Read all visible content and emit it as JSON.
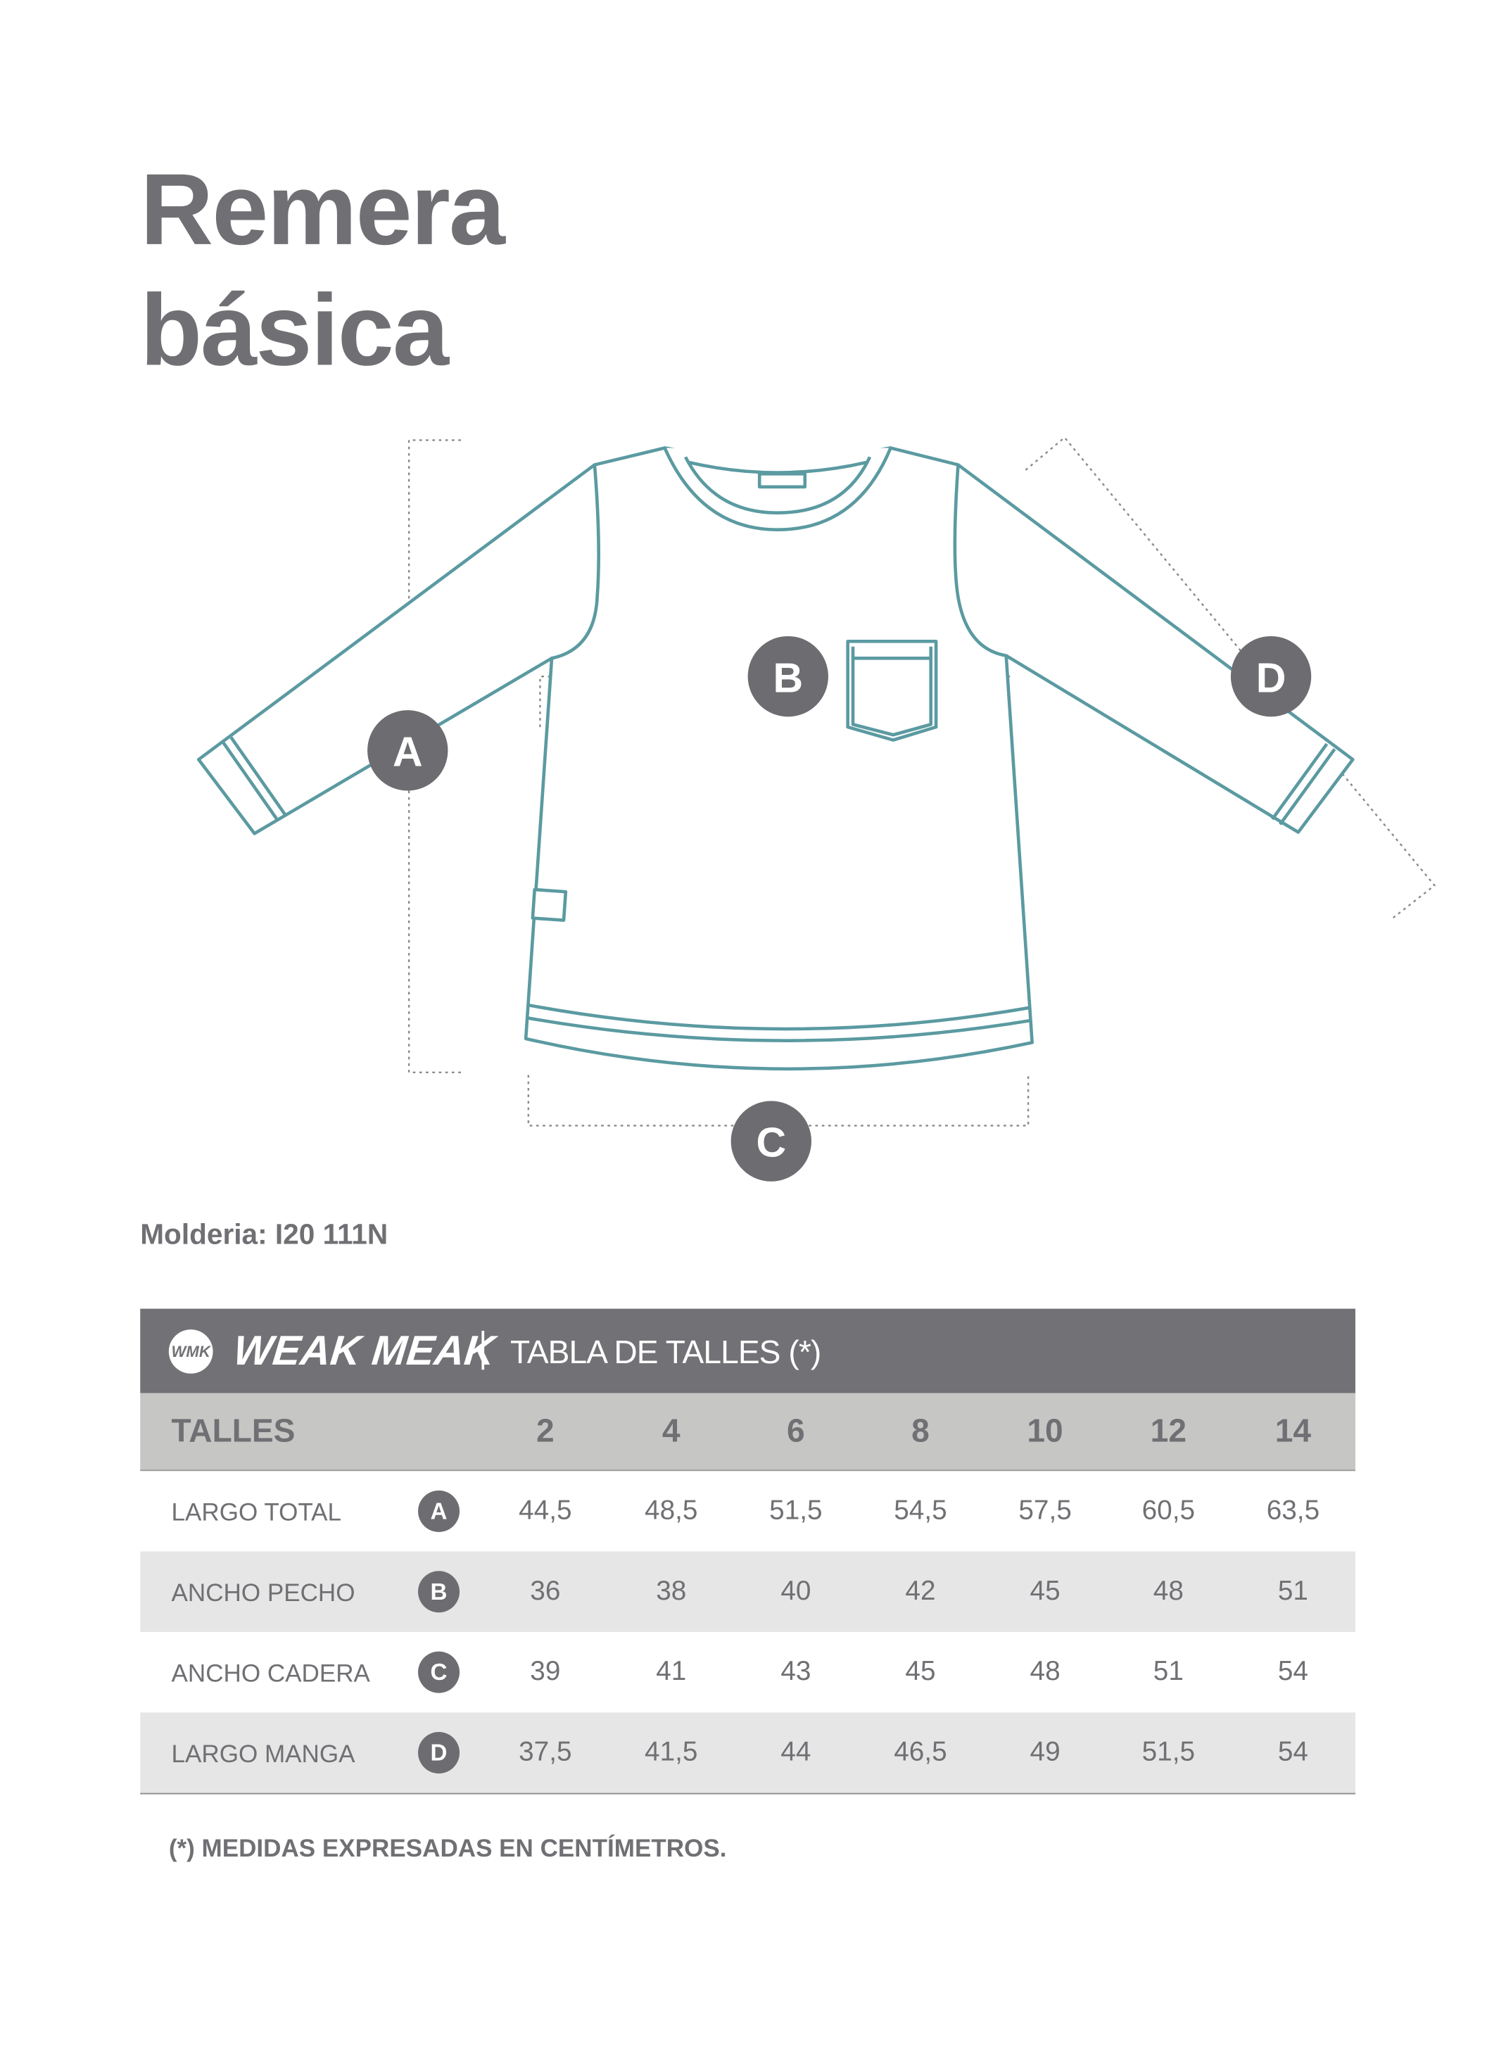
{
  "title_line1": "Remera",
  "title_line2": "básica",
  "diagram": {
    "stroke_color": "#5b9aa1",
    "marker_color": "#6d6d71",
    "markers": [
      "A",
      "B",
      "C",
      "D"
    ]
  },
  "molderia": "Molderia: I20 111N",
  "table": {
    "logo_mark": "WMK",
    "brand": "WEAK MEAK",
    "title": "TABLA DE TALLES (*)",
    "header_label": "TALLES",
    "sizes": [
      "2",
      "4",
      "6",
      "8",
      "10",
      "12",
      "14"
    ],
    "rows": [
      {
        "label": "LARGO TOTAL",
        "badge": "A",
        "values": [
          "44,5",
          "48,5",
          "51,5",
          "54,5",
          "57,5",
          "60,5",
          "63,5"
        ]
      },
      {
        "label": "ANCHO PECHO",
        "badge": "B",
        "values": [
          "36",
          "38",
          "40",
          "42",
          "45",
          "48",
          "51"
        ]
      },
      {
        "label": "ANCHO CADERA",
        "badge": "C",
        "values": [
          "39",
          "41",
          "43",
          "45",
          "48",
          "51",
          "54"
        ]
      },
      {
        "label": "LARGO MANGA",
        "badge": "D",
        "values": [
          "37,5",
          "41,5",
          "44",
          "46,5",
          "49",
          "51,5",
          "54"
        ]
      }
    ]
  },
  "footnote": "(*) MEDIDAS EXPRESADAS EN CENTÍMETROS.",
  "colors": {
    "header_bg": "#727276",
    "subheader_bg": "#c6c6c5",
    "stripe_bg": "#e6e6e6",
    "text": "#707074"
  }
}
